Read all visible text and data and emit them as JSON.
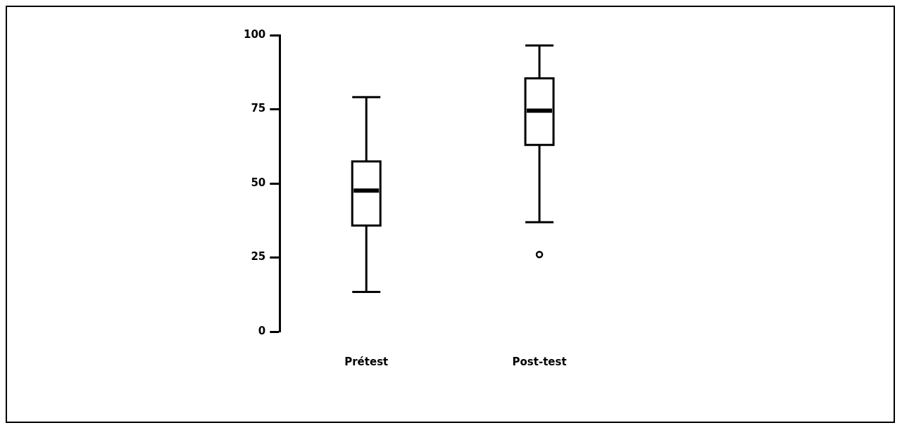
{
  "chart_data": {
    "type": "box",
    "categories": [
      "Prétest",
      "Post-test"
    ],
    "color": "#000000",
    "boxes": [
      {
        "low": 13.4,
        "q1": 35.8,
        "median": 47.6,
        "q3": 57.4,
        "high": 79.1
      },
      {
        "low": 36.9,
        "q1": 63,
        "median": 74.5,
        "q3": 85.4,
        "high": 96.5,
        "outliers": [
          26
        ]
      }
    ],
    "ylim": [
      0,
      100
    ],
    "yticks": [
      0,
      25,
      50,
      75,
      100
    ],
    "grid": false,
    "legend": false
  }
}
